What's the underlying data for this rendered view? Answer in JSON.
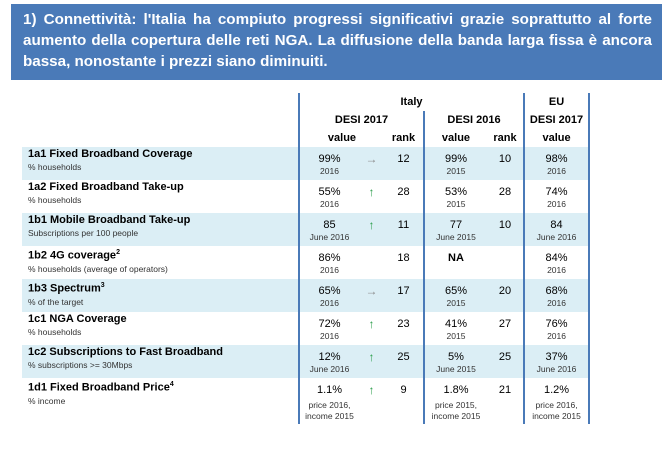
{
  "banner_text": "1) Connettività: l'Italia ha compiuto progressi significativi grazie soprattutto al forte aumento della copertura delle reti NGA. La diffusione della banda larga fissa è ancora bassa, nonostante i prezzi siano diminuiti.",
  "header": {
    "italy": "Italy",
    "eu": "EU",
    "desi2017": "DESI 2017",
    "desi2016": "DESI 2016",
    "eu_desi2017": "DESI 2017",
    "value": "value",
    "rank": "rank",
    "value2": "value",
    "rank2": "rank",
    "value3": "value"
  },
  "rows": [
    {
      "name": "1a1 Fixed Broadband Coverage",
      "sup": "",
      "sub": "% households",
      "v17": "99%",
      "y17": "2016",
      "arrow": "→",
      "r17": "12",
      "v16": "99%",
      "y16": "2015",
      "r16": "10",
      "eu": "98%",
      "yeu": "2016"
    },
    {
      "name": "1a2 Fixed Broadband Take-up",
      "sup": "",
      "sub": "% households",
      "v17": "55%",
      "y17": "2016",
      "arrow": "↑",
      "r17": "28",
      "v16": "53%",
      "y16": "2015",
      "r16": "28",
      "eu": "74%",
      "yeu": "2016"
    },
    {
      "name": "1b1 Mobile Broadband Take-up",
      "sup": "",
      "sub": "Subscriptions per 100 people",
      "v17": "85",
      "y17": "June 2016",
      "arrow": "↑",
      "r17": "11",
      "v16": "77",
      "y16": "June 2015",
      "r16": "10",
      "eu": "84",
      "yeu": "June 2016"
    },
    {
      "name": "1b2 4G coverage",
      "sup": "2",
      "sub": "% households (average of operators)",
      "v17": "86%",
      "y17": "2016",
      "arrow": "",
      "r17": "18",
      "v16": "NA",
      "y16": "",
      "r16": "",
      "eu": "84%",
      "yeu": "2016"
    },
    {
      "name": "1b3 Spectrum",
      "sup": "3",
      "sub": "% of the target",
      "v17": "65%",
      "y17": "2016",
      "arrow": "→",
      "r17": "17",
      "v16": "65%",
      "y16": "2015",
      "r16": "20",
      "eu": "68%",
      "yeu": "2016"
    },
    {
      "name": "1c1 NGA Coverage",
      "sup": "",
      "sub": "% households",
      "v17": "72%",
      "y17": "2016",
      "arrow": "↑",
      "r17": "23",
      "v16": "41%",
      "y16": "2015",
      "r16": "27",
      "eu": "76%",
      "yeu": "2016"
    },
    {
      "name": "1c2 Subscriptions to Fast Broadband",
      "sup": "",
      "sub": "% subscriptions >= 30Mbps",
      "v17": "12%",
      "y17": "June 2016",
      "arrow": "↑",
      "r17": "25",
      "v16": "5%",
      "y16": "June 2015",
      "r16": "25",
      "eu": "37%",
      "yeu": "June 2016"
    },
    {
      "name": "1d1 Fixed Broadband Price",
      "sup": "4",
      "sub": "% income",
      "v17": "1.1%",
      "y17a": "price 2016,",
      "y17b": "income 2015",
      "arrow": "↑",
      "r17": "9",
      "v16": "1.8%",
      "y16a": "price 2015,",
      "y16b": "income 2015",
      "r16": "21",
      "eu": "1.2%",
      "yeua": "price 2016,",
      "yeub": "income 2015"
    }
  ]
}
